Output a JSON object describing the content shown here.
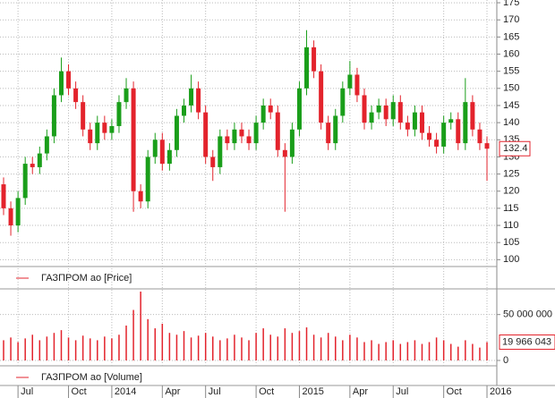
{
  "chart_data": [
    {
      "type": "candlestick",
      "name": "ГАЗПРОМ ао [Price]",
      "up_color": "#1a9e1a",
      "down_color": "#e3232c",
      "open": [
        122,
        115,
        110,
        118,
        128,
        127,
        131,
        136,
        148,
        155,
        150,
        146,
        138,
        134,
        140,
        137,
        139,
        146,
        150,
        120,
        117,
        130,
        135,
        128,
        132,
        142,
        145,
        150,
        143,
        130,
        127,
        136,
        134,
        138,
        136,
        134,
        140,
        145,
        143,
        132,
        130,
        138,
        150,
        162,
        155,
        140,
        134,
        142,
        150,
        154,
        148,
        140,
        143,
        145,
        141,
        146,
        140,
        138,
        143,
        137,
        135,
        133,
        140,
        141,
        134,
        146,
        138,
        134
      ],
      "high": [
        124,
        117,
        120,
        130,
        130,
        133,
        138,
        150,
        159,
        157,
        152,
        148,
        140,
        142,
        142,
        141,
        148,
        153,
        152,
        122,
        132,
        137,
        137,
        134,
        144,
        147,
        154,
        152,
        145,
        132,
        138,
        138,
        140,
        140,
        138,
        142,
        147,
        147,
        145,
        134,
        140,
        152,
        167,
        164,
        157,
        142,
        144,
        152,
        158,
        156,
        150,
        145,
        147,
        147,
        148,
        148,
        142,
        145,
        145,
        139,
        137,
        142,
        143,
        143,
        153,
        148,
        140,
        136
      ],
      "low": [
        113,
        107,
        108,
        116,
        125,
        125,
        129,
        134,
        146,
        148,
        144,
        136,
        132,
        132,
        135,
        135,
        137,
        144,
        114,
        115,
        115,
        128,
        126,
        126,
        130,
        140,
        143,
        141,
        128,
        123,
        125,
        132,
        132,
        134,
        132,
        132,
        138,
        141,
        130,
        114,
        128,
        136,
        148,
        153,
        138,
        132,
        132,
        140,
        148,
        146,
        138,
        138,
        141,
        139,
        139,
        138,
        136,
        136,
        135,
        133,
        131,
        131,
        138,
        132,
        132,
        136,
        132,
        123
      ],
      "close": [
        115,
        110,
        118,
        128,
        127,
        131,
        136,
        148,
        155,
        150,
        146,
        138,
        134,
        140,
        137,
        139,
        146,
        150,
        120,
        117,
        130,
        135,
        128,
        132,
        142,
        145,
        150,
        143,
        130,
        127,
        136,
        134,
        138,
        136,
        134,
        140,
        145,
        143,
        132,
        130,
        138,
        150,
        162,
        155,
        140,
        134,
        142,
        150,
        154,
        148,
        140,
        143,
        145,
        141,
        146,
        140,
        138,
        143,
        137,
        135,
        133,
        140,
        141,
        134,
        146,
        138,
        134,
        132.4
      ],
      "ylim": [
        98,
        175.8
      ],
      "yticks": [
        100,
        105,
        110,
        115,
        120,
        125,
        130,
        135,
        140,
        145,
        150,
        155,
        160,
        165,
        170,
        175
      ],
      "grid": true
    },
    {
      "type": "bar",
      "name": "ГАЗПРОМ ао [Volume]",
      "color": "#e3232c",
      "categories": [
        null,
        null,
        "Jul",
        null,
        null,
        null,
        null,
        null,
        null,
        "Oct",
        null,
        null,
        null,
        null,
        null,
        "2014",
        null,
        null,
        null,
        null,
        null,
        null,
        "Apr",
        null,
        null,
        null,
        null,
        null,
        "Jul",
        null,
        null,
        null,
        null,
        null,
        null,
        "Oct",
        null,
        null,
        null,
        null,
        null,
        "2015",
        null,
        null,
        null,
        null,
        null,
        null,
        "Apr",
        null,
        null,
        null,
        null,
        null,
        "Jul",
        null,
        null,
        null,
        null,
        null,
        null,
        "Oct",
        null,
        null,
        null,
        null,
        null,
        "2016"
      ],
      "values": [
        22000000,
        25000000,
        20000000,
        24000000,
        28000000,
        22000000,
        26000000,
        30000000,
        33000000,
        25000000,
        22000000,
        27000000,
        24000000,
        22000000,
        26000000,
        24000000,
        28000000,
        38000000,
        55000000,
        75000000,
        45000000,
        35000000,
        40000000,
        30000000,
        28000000,
        32000000,
        25000000,
        27000000,
        30000000,
        26000000,
        22000000,
        24000000,
        28000000,
        25000000,
        22000000,
        30000000,
        35000000,
        28000000,
        26000000,
        35000000,
        30000000,
        32000000,
        36000000,
        28000000,
        25000000,
        30000000,
        26000000,
        22000000,
        28000000,
        25000000,
        20000000,
        22000000,
        18000000,
        20000000,
        22000000,
        18000000,
        20000000,
        22000000,
        18000000,
        20000000,
        25000000,
        22000000,
        18000000,
        15000000,
        22000000,
        18000000,
        14000000,
        19966043
      ],
      "last_value_label": "19 966 043",
      "ylim": [
        0,
        76000000
      ],
      "yticks": [
        0,
        {
          "value": 50000000,
          "label": "50 000 000"
        }
      ],
      "grid": true
    }
  ]
}
